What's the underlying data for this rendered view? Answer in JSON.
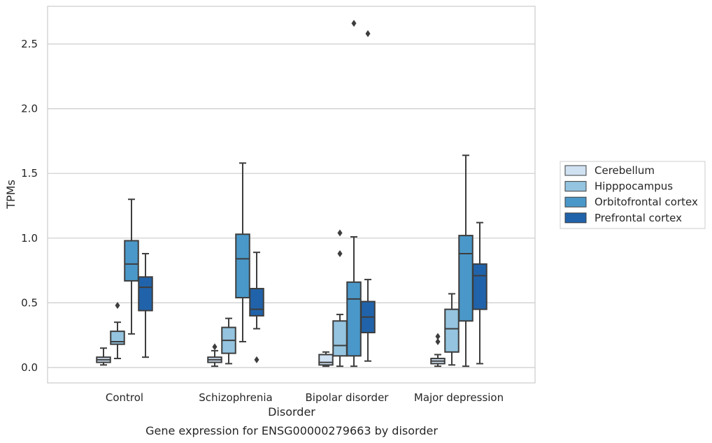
{
  "chart_data": {
    "type": "box",
    "caption": "Gene expression for ENSG00000279663 by disorder",
    "xlabel": "Disorder",
    "ylabel": "TPMs",
    "ylim": [
      -0.12,
      2.81
    ],
    "yticks": [
      "0.0",
      "0.5",
      "1.0",
      "1.5",
      "2.0",
      "2.5"
    ],
    "ytick_values": [
      0.0,
      0.5,
      1.0,
      1.5,
      2.0,
      2.5
    ],
    "grid": "horizontal",
    "legend_position": "right",
    "categories": [
      "Control",
      "Schizophrenia",
      "Bipolar disorder",
      "Major depression"
    ],
    "series": [
      {
        "name": "Cerebellum",
        "color": "#d0e1f2",
        "boxes": [
          {
            "whisker_low": 0.02,
            "q1": 0.04,
            "median": 0.06,
            "q3": 0.08,
            "whisker_high": 0.15,
            "outliers": []
          },
          {
            "whisker_low": 0.01,
            "q1": 0.04,
            "median": 0.06,
            "q3": 0.08,
            "whisker_high": 0.13,
            "outliers": [
              0.16
            ]
          },
          {
            "whisker_low": 0.01,
            "q1": 0.02,
            "median": 0.04,
            "q3": 0.1,
            "whisker_high": 0.12,
            "outliers": []
          },
          {
            "whisker_low": 0.01,
            "q1": 0.03,
            "median": 0.05,
            "q3": 0.07,
            "whisker_high": 0.1,
            "outliers": [
              0.2,
              0.24
            ]
          }
        ]
      },
      {
        "name": "Hipppocampus",
        "color": "#94c4df",
        "boxes": [
          {
            "whisker_low": 0.07,
            "q1": 0.18,
            "median": 0.2,
            "q3": 0.28,
            "whisker_high": 0.35,
            "outliers": [
              0.48
            ]
          },
          {
            "whisker_low": 0.03,
            "q1": 0.11,
            "median": 0.21,
            "q3": 0.31,
            "whisker_high": 0.38,
            "outliers": []
          },
          {
            "whisker_low": 0.01,
            "q1": 0.09,
            "median": 0.17,
            "q3": 0.36,
            "whisker_high": 0.41,
            "outliers": [
              0.88,
              1.04
            ]
          },
          {
            "whisker_low": 0.02,
            "q1": 0.12,
            "median": 0.3,
            "q3": 0.45,
            "whisker_high": 0.57,
            "outliers": []
          }
        ]
      },
      {
        "name": "Orbitofrontal cortex",
        "color": "#4a98c9",
        "boxes": [
          {
            "whisker_low": 0.26,
            "q1": 0.67,
            "median": 0.8,
            "q3": 0.98,
            "whisker_high": 1.3,
            "outliers": []
          },
          {
            "whisker_low": 0.2,
            "q1": 0.54,
            "median": 0.84,
            "q3": 1.03,
            "whisker_high": 1.58,
            "outliers": []
          },
          {
            "whisker_low": 0.01,
            "q1": 0.09,
            "median": 0.53,
            "q3": 0.66,
            "whisker_high": 1.01,
            "outliers": [
              2.66
            ]
          },
          {
            "whisker_low": 0.01,
            "q1": 0.36,
            "median": 0.88,
            "q3": 1.02,
            "whisker_high": 1.64,
            "outliers": []
          }
        ]
      },
      {
        "name": "Prefrontal cortex",
        "color": "#2163aa",
        "boxes": [
          {
            "whisker_low": 0.08,
            "q1": 0.44,
            "median": 0.62,
            "q3": 0.7,
            "whisker_high": 0.88,
            "outliers": []
          },
          {
            "whisker_low": 0.3,
            "q1": 0.4,
            "median": 0.45,
            "q3": 0.61,
            "whisker_high": 0.89,
            "outliers": [
              0.06
            ]
          },
          {
            "whisker_low": 0.05,
            "q1": 0.27,
            "median": 0.39,
            "q3": 0.51,
            "whisker_high": 0.68,
            "outliers": [
              2.58
            ]
          },
          {
            "whisker_low": 0.03,
            "q1": 0.45,
            "median": 0.71,
            "q3": 0.8,
            "whisker_high": 1.12,
            "outliers": []
          }
        ]
      }
    ]
  }
}
